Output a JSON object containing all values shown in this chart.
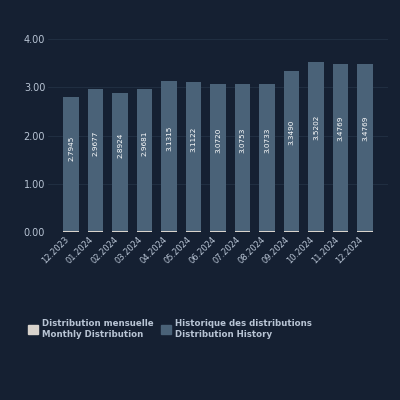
{
  "categories": [
    "12.2023",
    "01.2024",
    "02.2024",
    "03.2024",
    "04.2024",
    "05.2024",
    "06.2024",
    "07.2024",
    "08.2024",
    "09.2024",
    "10.2024",
    "11.2024",
    "12.2024"
  ],
  "history_values": [
    2.7945,
    2.9677,
    2.8924,
    2.9681,
    3.1315,
    3.1122,
    3.072,
    3.0753,
    3.0733,
    3.349,
    3.5202,
    3.4769,
    3.4769
  ],
  "monthly_values": [
    0.025,
    0.025,
    0.025,
    0.025,
    0.025,
    0.025,
    0.025,
    0.025,
    0.025,
    0.025,
    0.025,
    0.025,
    0.025
  ],
  "bar_labels": [
    "2.7945",
    "2.9677",
    "2.8924",
    "2.9681",
    "3.1315",
    "3.1122",
    "3.0720",
    "3.0753",
    "3.0733",
    "3.3490",
    "3.5202",
    "3.4769",
    "3.4769"
  ],
  "history_color": "#4a6278",
  "monthly_color": "#d8d3cc",
  "background_color": "#152032",
  "text_color": "#b8c4d4",
  "grid_color": "#253548",
  "yticks": [
    0.0,
    1.0,
    2.0,
    3.0,
    4.0
  ],
  "ylim": [
    0,
    4.4
  ],
  "legend_label1": "Distribution mensuelle",
  "legend_label1b": "Monthly Distribution",
  "legend_label2": "Historique des distributions",
  "legend_label2b": "Distribution History",
  "bar_label_fontsize": 5.2,
  "tick_fontsize": 6.0,
  "ytick_fontsize": 7.0,
  "legend_fontsize": 6.2
}
